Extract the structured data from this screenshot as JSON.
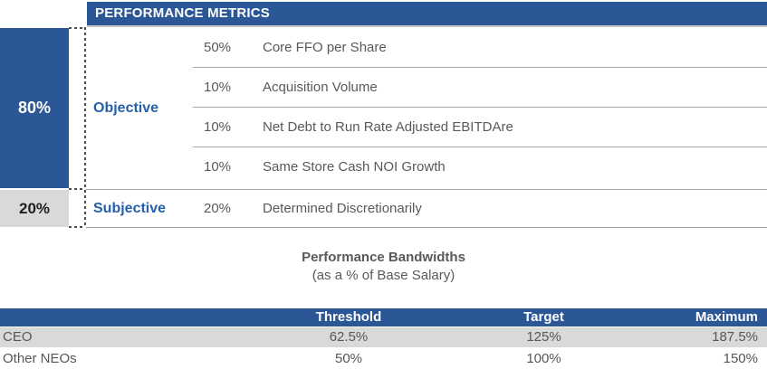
{
  "colors": {
    "primary_blue": "#2b5796",
    "category_label_blue": "#2660a8",
    "light_gray_fill": "#d9d9d9",
    "body_text_gray": "#58595b",
    "divider_gray": "#a8a8a8"
  },
  "performance_table": {
    "header": "PERFORMANCE METRICS",
    "groups": [
      {
        "weight": "80%",
        "category": "Objective",
        "rows": [
          {
            "weight": "50%",
            "metric": "Core FFO per Share"
          },
          {
            "weight": "10%",
            "metric": "Acquisition Volume"
          },
          {
            "weight": "10%",
            "metric": "Net Debt to Run Rate Adjusted EBITDAre"
          },
          {
            "weight": "10%",
            "metric": "Same Store Cash NOI Growth"
          }
        ]
      },
      {
        "weight": "20%",
        "category": "Subjective",
        "rows": [
          {
            "weight": "20%",
            "metric": "Determined Discretionarily"
          }
        ]
      }
    ]
  },
  "bandwidths": {
    "title": "Performance Bandwidths",
    "subtitle": "(as a % of Base Salary)",
    "columns": {
      "label": "",
      "threshold": "Threshold",
      "target": "Target",
      "maximum": "Maximum"
    },
    "rows": [
      {
        "label": "CEO",
        "threshold": "62.5%",
        "target": "125%",
        "maximum": "187.5%"
      },
      {
        "label": "Other NEOs",
        "threshold": "50%",
        "target": "100%",
        "maximum": "150%"
      }
    ]
  }
}
